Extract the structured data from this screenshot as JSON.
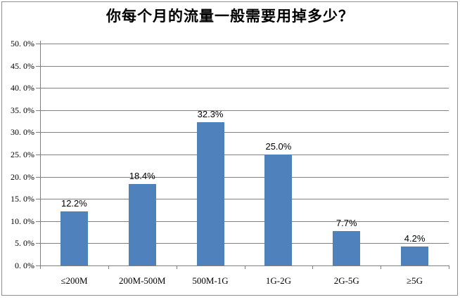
{
  "colors": {
    "bar": "#4F81BD",
    "gridline": "#808080",
    "axis": "#808080",
    "border": "#8F8F8F",
    "background": "#FFFFFF",
    "text": "#000000"
  },
  "chart_data": {
    "type": "bar",
    "title": "你每个月的流量一般需要用掉多少？",
    "categories": [
      "≤200M",
      "200M-500M",
      "500M-1G",
      "1G-2G",
      "2G-5G",
      "≥5G"
    ],
    "values": [
      12.2,
      18.4,
      32.3,
      25.0,
      7.7,
      4.2
    ],
    "data_labels": [
      "12.2%",
      "18.4%",
      "32.3%",
      "25.0%",
      "7.7%",
      "4.2%"
    ],
    "xlabel": "",
    "ylabel": "",
    "ylim": [
      0,
      50
    ],
    "ytick_step": 5,
    "ytick_labels": [
      "0. 0%",
      "5. 0%",
      "10. 0%",
      "15. 0%",
      "20. 0%",
      "25. 0%",
      "30. 0%",
      "35. 0%",
      "40. 0%",
      "45. 0%",
      "50. 0%"
    ],
    "grid": true,
    "legend": false,
    "legend_position": "none"
  }
}
